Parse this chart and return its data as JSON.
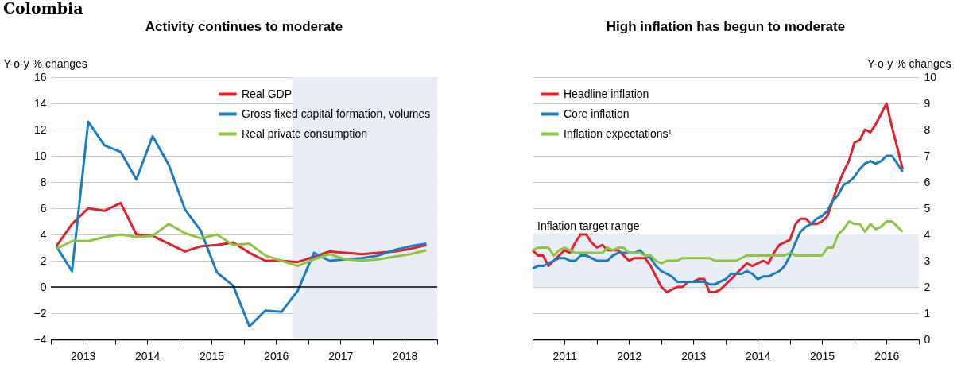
{
  "chart_data": [
    {
      "type": "line",
      "title": "Activity continues to moderate",
      "ylabel": "Y-o-y % changes",
      "annotations": [
        "Colombia"
      ],
      "x": [
        "2013-02",
        "2013-05",
        "2013-08",
        "2013-11",
        "2014-02",
        "2014-05",
        "2014-08",
        "2014-11",
        "2015-02",
        "2015-05",
        "2015-08",
        "2015-11",
        "2016-02",
        "2016-05",
        "2016-08",
        "2016-11",
        "2017-02",
        "2017-05",
        "2017-08",
        "2017-11",
        "2018-02",
        "2018-05",
        "2018-08",
        "2018-11"
      ],
      "series": [
        {
          "name": "Real GDP",
          "color": "#e3202a",
          "values": [
            3.1,
            4.8,
            6.0,
            5.8,
            6.4,
            4.0,
            3.9,
            3.3,
            2.7,
            3.1,
            3.2,
            3.4,
            2.6,
            2.0,
            2.0,
            1.9,
            2.3,
            2.7,
            2.6,
            2.5,
            2.6,
            2.7,
            2.9,
            3.2
          ]
        },
        {
          "name": "Gross fixed capital formation, volumes",
          "color": "#1a7cc1",
          "values": [
            3.1,
            1.2,
            12.6,
            10.8,
            10.3,
            8.2,
            11.5,
            9.3,
            5.9,
            4.3,
            1.1,
            0.1,
            -3.0,
            -1.8,
            -1.9,
            -0.3,
            2.6,
            2.0,
            2.1,
            2.2,
            2.4,
            2.8,
            3.1,
            3.3
          ]
        },
        {
          "name": "Real private consumption",
          "color": "#8cc63f",
          "values": [
            2.9,
            3.5,
            3.5,
            3.8,
            4.0,
            3.8,
            3.9,
            4.8,
            4.1,
            3.7,
            4.0,
            3.2,
            3.3,
            2.4,
            2.0,
            1.6,
            2.1,
            2.5,
            2.1,
            2.0,
            2.1,
            2.3,
            2.5,
            2.8
          ]
        }
      ],
      "xlim": [
        "2013-01",
        "2019-01"
      ],
      "xticks": [
        {
          "value": "2013-01",
          "label": null
        },
        {
          "value": "2013-07",
          "label": "2013"
        },
        {
          "value": "2014-01",
          "label": null
        },
        {
          "value": "2014-07",
          "label": "2014"
        },
        {
          "value": "2015-01",
          "label": null
        },
        {
          "value": "2015-07",
          "label": "2015"
        },
        {
          "value": "2016-01",
          "label": null
        },
        {
          "value": "2016-07",
          "label": "2016"
        },
        {
          "value": "2017-01",
          "label": null
        },
        {
          "value": "2017-07",
          "label": "2017"
        },
        {
          "value": "2018-01",
          "label": null
        },
        {
          "value": "2018-07",
          "label": "2018"
        },
        {
          "value": "2019-01",
          "label": null
        }
      ],
      "ylim": [
        -4,
        16
      ],
      "yticks": [
        -4,
        -2,
        0,
        2,
        4,
        6,
        8,
        10,
        12,
        14,
        16
      ],
      "bands": [
        {
          "axis": "x",
          "from": "2016-10",
          "to": "2019-01",
          "color": "#e9edf5"
        }
      ],
      "ref_lines": [
        {
          "axis": "y",
          "value": 0,
          "color": "#000000"
        }
      ],
      "grid": "y",
      "legend": "top right"
    },
    {
      "type": "line",
      "title": "High inflation has begun to moderate",
      "y2label": "Y-o-y % changes",
      "x": [
        "2011-01",
        "2011-02",
        "2011-03",
        "2011-04",
        "2011-05",
        "2011-06",
        "2011-07",
        "2011-08",
        "2011-09",
        "2011-10",
        "2011-11",
        "2011-12",
        "2012-01",
        "2012-02",
        "2012-03",
        "2012-04",
        "2012-05",
        "2012-06",
        "2012-07",
        "2012-08",
        "2012-09",
        "2012-10",
        "2012-11",
        "2012-12",
        "2013-01",
        "2013-02",
        "2013-03",
        "2013-04",
        "2013-05",
        "2013-06",
        "2013-07",
        "2013-08",
        "2013-09",
        "2013-10",
        "2013-11",
        "2013-12",
        "2014-01",
        "2014-02",
        "2014-03",
        "2014-04",
        "2014-05",
        "2014-06",
        "2014-07",
        "2014-08",
        "2014-09",
        "2014-10",
        "2014-11",
        "2014-12",
        "2015-01",
        "2015-02",
        "2015-03",
        "2015-04",
        "2015-05",
        "2015-06",
        "2015-07",
        "2015-08",
        "2015-09",
        "2015-10",
        "2015-11",
        "2015-12",
        "2016-01",
        "2016-02",
        "2016-03",
        "2016-04",
        "2016-05",
        "2016-06",
        "2016-07",
        "2016-08",
        "2016-09",
        "2016-10"
      ],
      "series": [
        {
          "name": "Headline inflation",
          "color": "#e3202a",
          "axis": "y2",
          "values": [
            3.4,
            3.2,
            3.2,
            2.8,
            3.0,
            3.2,
            3.4,
            3.3,
            3.7,
            4.0,
            4.0,
            3.7,
            3.5,
            3.6,
            3.4,
            3.4,
            3.4,
            3.2,
            3.0,
            3.1,
            3.1,
            3.1,
            2.8,
            2.4,
            2.0,
            1.8,
            1.9,
            2.0,
            2.0,
            2.2,
            2.2,
            2.3,
            2.3,
            1.8,
            1.8,
            1.9,
            2.1,
            2.3,
            2.5,
            2.7,
            2.9,
            2.8,
            2.9,
            3.0,
            2.9,
            3.3,
            3.6,
            3.7,
            3.8,
            4.4,
            4.6,
            4.6,
            4.4,
            4.4,
            4.5,
            4.7,
            5.3,
            5.9,
            6.4,
            6.8,
            7.5,
            7.6,
            8.0,
            7.9,
            8.2,
            8.6,
            9.0,
            8.1,
            7.3,
            6.5
          ]
        },
        {
          "name": "Core inflation",
          "color": "#1a7cc1",
          "axis": "y2",
          "values": [
            2.7,
            2.8,
            2.8,
            2.9,
            3.0,
            3.1,
            3.1,
            3.0,
            3.0,
            3.2,
            3.2,
            3.1,
            3.0,
            3.0,
            3.0,
            3.2,
            3.3,
            3.3,
            3.3,
            3.3,
            3.4,
            3.2,
            3.1,
            2.8,
            2.6,
            2.5,
            2.4,
            2.2,
            2.2,
            2.2,
            2.2,
            2.2,
            2.2,
            2.1,
            2.1,
            2.2,
            2.3,
            2.5,
            2.5,
            2.5,
            2.6,
            2.5,
            2.3,
            2.4,
            2.4,
            2.5,
            2.6,
            2.8,
            3.2,
            3.7,
            4.1,
            4.3,
            4.4,
            4.6,
            4.7,
            4.9,
            5.3,
            5.5,
            5.9,
            6.0,
            6.2,
            6.5,
            6.7,
            6.8,
            6.7,
            6.8,
            7.0,
            7.0,
            6.7,
            6.4
          ]
        },
        {
          "name": "Inflation expectations¹",
          "color": "#8cc63f",
          "axis": "y2",
          "values": [
            3.4,
            3.5,
            3.5,
            3.5,
            3.2,
            3.4,
            3.5,
            3.4,
            3.3,
            3.3,
            3.3,
            3.3,
            3.3,
            3.3,
            3.5,
            3.4,
            3.5,
            3.5,
            3.3,
            3.3,
            3.3,
            3.2,
            3.2,
            3.0,
            2.9,
            3.0,
            3.0,
            3.0,
            3.1,
            3.1,
            3.1,
            3.1,
            3.1,
            3.1,
            3.0,
            3.0,
            3.0,
            3.0,
            3.0,
            3.1,
            3.2,
            3.2,
            3.2,
            3.2,
            3.2,
            3.2,
            3.2,
            3.2,
            3.3,
            3.2,
            3.2,
            3.2,
            3.2,
            3.2,
            3.2,
            3.5,
            3.5,
            4.0,
            4.2,
            4.5,
            4.4,
            4.4,
            4.1,
            4.4,
            4.2,
            4.3,
            4.5,
            4.5,
            4.3,
            4.1
          ]
        }
      ],
      "xlim": [
        "2011-01",
        "2017-01"
      ],
      "xticks": [
        {
          "value": "2011-01",
          "label": null
        },
        {
          "value": "2011-07",
          "label": "2011"
        },
        {
          "value": "2012-01",
          "label": null
        },
        {
          "value": "2012-07",
          "label": "2012"
        },
        {
          "value": "2013-01",
          "label": null
        },
        {
          "value": "2013-07",
          "label": "2013"
        },
        {
          "value": "2014-01",
          "label": null
        },
        {
          "value": "2014-07",
          "label": "2014"
        },
        {
          "value": "2015-01",
          "label": null
        },
        {
          "value": "2015-07",
          "label": "2015"
        },
        {
          "value": "2016-01",
          "label": null
        },
        {
          "value": "2016-07",
          "label": "2016"
        },
        {
          "value": "2017-01",
          "label": null
        }
      ],
      "y2lim": [
        0,
        10
      ],
      "y2ticks": [
        0,
        1,
        2,
        3,
        4,
        5,
        6,
        7,
        8,
        9,
        10
      ],
      "bands": [
        {
          "axis": "y2",
          "from": 2,
          "to": 4,
          "label": "Inflation target range",
          "color": "#e9edf5"
        }
      ],
      "grid": "y",
      "legend": "top left"
    }
  ]
}
